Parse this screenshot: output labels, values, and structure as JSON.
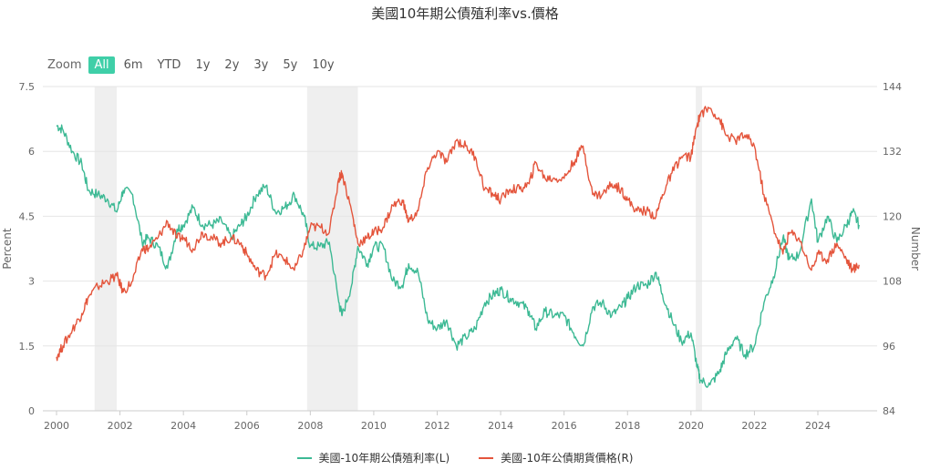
{
  "title": "美國10年期公債殖利率vs.價格",
  "zoom": {
    "label": "Zoom",
    "buttons": [
      {
        "label": "All",
        "active": true
      },
      {
        "label": "6m",
        "active": false
      },
      {
        "label": "YTD",
        "active": false
      },
      {
        "label": "1y",
        "active": false
      },
      {
        "label": "2y",
        "active": false
      },
      {
        "label": "3y",
        "active": false
      },
      {
        "label": "5y",
        "active": false
      },
      {
        "label": "10y",
        "active": false
      }
    ]
  },
  "chart_data": {
    "type": "line",
    "title": "美國10年期公債殖利率vs.價格",
    "x_range": [
      2000.0,
      2025.3
    ],
    "x_ticks": [
      "2000",
      "2002",
      "2004",
      "2006",
      "2008",
      "2010",
      "2012",
      "2014",
      "2016",
      "2018",
      "2020",
      "2022",
      "2024"
    ],
    "left_axis": {
      "label": "Percent",
      "range": [
        0,
        7.5
      ],
      "ticks": [
        "0",
        "1.5",
        "3",
        "4.5",
        "6",
        "7.5"
      ]
    },
    "right_axis": {
      "label": "Number",
      "range": [
        84,
        144
      ],
      "ticks": [
        "84",
        "96",
        "108",
        "120",
        "132",
        "144"
      ]
    },
    "grid": true,
    "legend_position": "bottom-center",
    "shaded_periods": [
      [
        2001.2,
        2001.9
      ],
      [
        2007.9,
        2009.5
      ],
      [
        2020.15,
        2020.35
      ]
    ],
    "series": [
      {
        "name": "美國-10年期公債殖利率(L)",
        "axis": "left",
        "color": "#3cb994",
        "x": [
          2000.0,
          2000.2,
          2000.5,
          2000.8,
          2001.0,
          2001.3,
          2001.6,
          2001.9,
          2002.1,
          2002.4,
          2002.7,
          2002.9,
          2003.2,
          2003.5,
          2003.8,
          2004.0,
          2004.3,
          2004.6,
          2004.9,
          2005.2,
          2005.5,
          2005.8,
          2006.0,
          2006.3,
          2006.6,
          2006.9,
          2007.2,
          2007.5,
          2007.8,
          2008.0,
          2008.3,
          2008.6,
          2008.9,
          2009.0,
          2009.3,
          2009.5,
          2009.8,
          2010.0,
          2010.3,
          2010.6,
          2010.9,
          2011.1,
          2011.4,
          2011.7,
          2012.0,
          2012.3,
          2012.6,
          2012.9,
          2013.2,
          2013.5,
          2013.8,
          2014.0,
          2014.3,
          2014.6,
          2014.9,
          2015.1,
          2015.4,
          2015.7,
          2016.0,
          2016.3,
          2016.6,
          2016.9,
          2017.2,
          2017.5,
          2017.8,
          2018.0,
          2018.3,
          2018.6,
          2018.9,
          2019.1,
          2019.4,
          2019.7,
          2020.0,
          2020.2,
          2020.3,
          2020.6,
          2020.9,
          2021.1,
          2021.4,
          2021.7,
          2022.0,
          2022.3,
          2022.6,
          2022.9,
          2023.1,
          2023.4,
          2023.8,
          2024.0,
          2024.3,
          2024.6,
          2024.9,
          2025.1,
          2025.3
        ],
        "values": [
          6.6,
          6.5,
          6.0,
          5.7,
          5.1,
          5.0,
          4.9,
          4.6,
          5.1,
          5.0,
          3.9,
          4.0,
          3.8,
          3.3,
          4.2,
          4.3,
          4.7,
          4.3,
          4.3,
          4.4,
          4.0,
          4.3,
          4.5,
          5.0,
          5.2,
          4.6,
          4.7,
          5.0,
          4.5,
          3.8,
          3.8,
          3.9,
          2.5,
          2.2,
          2.9,
          3.8,
          3.4,
          3.8,
          3.8,
          3.0,
          2.9,
          3.4,
          3.2,
          2.1,
          1.9,
          2.1,
          1.5,
          1.7,
          1.9,
          2.5,
          2.7,
          2.8,
          2.6,
          2.5,
          2.3,
          1.9,
          2.3,
          2.2,
          2.2,
          1.8,
          1.5,
          2.4,
          2.5,
          2.2,
          2.4,
          2.6,
          2.9,
          2.9,
          3.2,
          2.7,
          2.1,
          1.6,
          1.8,
          1.0,
          0.7,
          0.6,
          0.9,
          1.3,
          1.7,
          1.3,
          1.5,
          2.5,
          3.1,
          4.0,
          3.5,
          3.6,
          4.9,
          3.9,
          4.5,
          3.9,
          4.3,
          4.6,
          4.3
        ]
      },
      {
        "name": "美國-10年公債期貨價格(R)",
        "axis": "right",
        "color": "#e4553c",
        "x": [
          2000.0,
          2000.2,
          2000.5,
          2000.8,
          2001.0,
          2001.3,
          2001.6,
          2001.9,
          2002.1,
          2002.4,
          2002.7,
          2002.9,
          2003.2,
          2003.5,
          2003.8,
          2004.0,
          2004.3,
          2004.6,
          2004.9,
          2005.2,
          2005.5,
          2005.8,
          2006.0,
          2006.3,
          2006.6,
          2006.9,
          2007.2,
          2007.5,
          2007.8,
          2008.0,
          2008.3,
          2008.6,
          2008.9,
          2009.0,
          2009.3,
          2009.5,
          2009.8,
          2010.0,
          2010.3,
          2010.6,
          2010.9,
          2011.1,
          2011.4,
          2011.7,
          2012.0,
          2012.3,
          2012.6,
          2012.9,
          2013.2,
          2013.5,
          2013.8,
          2014.0,
          2014.3,
          2014.6,
          2014.9,
          2015.1,
          2015.4,
          2015.7,
          2016.0,
          2016.3,
          2016.6,
          2016.9,
          2017.2,
          2017.5,
          2017.8,
          2018.0,
          2018.3,
          2018.6,
          2018.9,
          2019.1,
          2019.4,
          2019.7,
          2020.0,
          2020.2,
          2020.3,
          2020.6,
          2020.9,
          2021.1,
          2021.4,
          2021.7,
          2022.0,
          2022.3,
          2022.6,
          2022.9,
          2023.1,
          2023.4,
          2023.8,
          2024.0,
          2024.3,
          2024.6,
          2024.9,
          2025.1,
          2025.3
        ],
        "values": [
          94,
          96,
          99,
          102,
          105,
          107,
          108,
          109,
          106,
          108,
          114,
          114,
          116,
          119,
          116,
          116,
          114,
          117,
          116,
          115,
          116,
          115,
          113,
          110,
          109,
          113,
          112,
          110,
          114,
          118,
          118,
          117,
          127,
          128,
          121,
          115,
          116,
          117,
          118,
          122,
          123,
          119,
          121,
          129,
          132,
          130,
          134,
          133,
          131,
          125,
          124,
          123,
          125,
          125,
          126,
          130,
          127,
          127,
          127,
          130,
          133,
          124,
          124,
          126,
          125,
          123,
          121,
          121,
          120,
          124,
          128,
          131,
          131,
          137,
          139,
          140,
          138,
          135,
          134,
          135,
          133,
          124,
          118,
          113,
          117,
          116,
          110,
          113,
          112,
          115,
          112,
          110,
          111
        ]
      }
    ]
  },
  "legend": {
    "items": [
      {
        "label": "美國-10年期公債殖利率(L)",
        "color": "#3cb994"
      },
      {
        "label": "美國-10年公債期貨價格(R)",
        "color": "#e4553c"
      }
    ]
  }
}
